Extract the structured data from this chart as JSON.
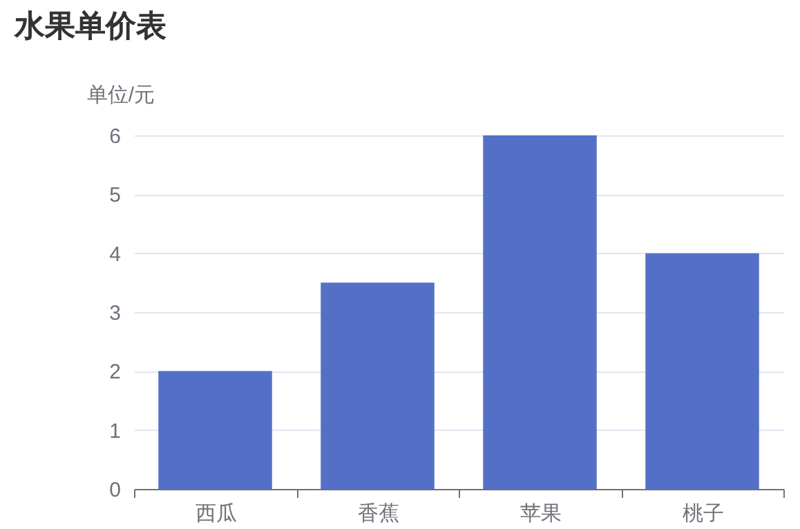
{
  "chart_data": {
    "type": "bar",
    "title": "水果单价表",
    "ylabel": "单位/元",
    "categories": [
      "西瓜",
      "香蕉",
      "苹果",
      "桃子"
    ],
    "values": [
      2,
      3.5,
      6,
      4
    ],
    "color": "#5470c6",
    "ylim": [
      0,
      6
    ],
    "yticks": [
      0,
      1,
      2,
      3,
      4,
      5,
      6
    ],
    "grid": "y"
  }
}
